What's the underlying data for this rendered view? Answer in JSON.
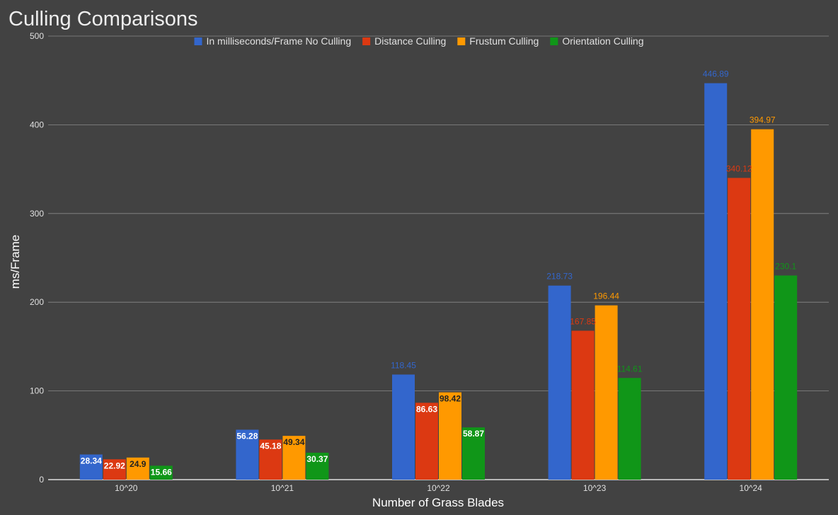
{
  "chart_data": {
    "type": "bar",
    "title": "Culling Comparisons",
    "xlabel": "Number of Grass Blades",
    "ylabel": "ms/Frame",
    "ylim": [
      0,
      500
    ],
    "yticks": [
      0,
      100,
      200,
      300,
      400,
      500
    ],
    "grid": true,
    "legend_position": "top",
    "categories": [
      "10^20",
      "10^21",
      "10^22",
      "10^23",
      "10^24"
    ],
    "series": [
      {
        "name": "In milliseconds/Frame No Culling",
        "color": "#3366cc",
        "values": [
          28.34,
          56.28,
          118.45,
          218.73,
          446.89
        ]
      },
      {
        "name": "Distance Culling",
        "color": "#dc3912",
        "values": [
          22.92,
          45.18,
          86.63,
          167.85,
          340.12
        ]
      },
      {
        "name": "Frustum Culling",
        "color": "#ff9900",
        "values": [
          24.9,
          49.34,
          98.42,
          196.44,
          394.97
        ]
      },
      {
        "name": "Orientation Culling",
        "color": "#109618",
        "values": [
          15.66,
          30.37,
          58.87,
          114.61,
          230.1
        ]
      }
    ]
  }
}
